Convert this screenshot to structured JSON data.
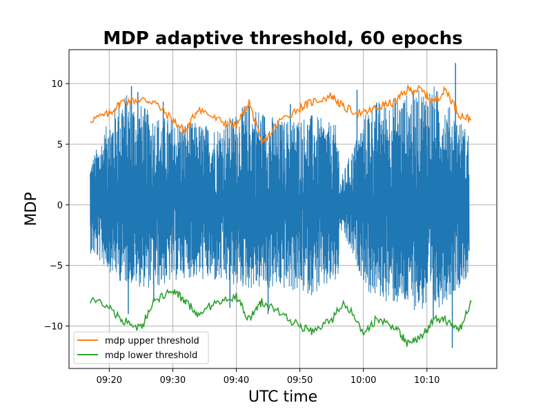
{
  "chart_data": {
    "type": "line",
    "title": "MDP adaptive threshold, 60 epochs",
    "xlabel": "UTC time",
    "ylabel": "MDP",
    "xlim": [
      "09:13:40",
      "10:21:00"
    ],
    "ylim": [
      -13.5,
      12.8
    ],
    "x_ticks": [
      "09:20",
      "09:30",
      "09:40",
      "09:50",
      "10:00",
      "10:10"
    ],
    "y_ticks": [
      {
        "value": 10,
        "label": "10"
      },
      {
        "value": 5,
        "label": "5"
      },
      {
        "value": 0,
        "label": "0"
      },
      {
        "value": -5,
        "label": "−5"
      },
      {
        "value": -10,
        "label": "−10"
      }
    ],
    "grid": true,
    "legend_position": "lower-left",
    "series": [
      {
        "name": "",
        "color": "#1f77b4",
        "x": [
          "09:17",
          "09:22",
          "09:27",
          "09:32",
          "09:37",
          "09:42",
          "09:47",
          "09:52",
          "09:56",
          "09:56:20",
          "10:01",
          "10:06",
          "10:11",
          "10:16:40"
        ],
        "upper_envelope": [
          3.5,
          9.5,
          7.5,
          7.0,
          6.5,
          8.5,
          7.0,
          7.5,
          6.5,
          2.0,
          8.5,
          9.0,
          10.0,
          6.0
        ],
        "lower_envelope": [
          -4.0,
          -6.5,
          -7.0,
          -6.0,
          -6.5,
          -7.0,
          -7.0,
          -7.5,
          -6.5,
          -2.0,
          -7.5,
          -8.5,
          -9.0,
          -6.0
        ],
        "peaks": [
          {
            "x": "09:19:50",
            "y": 5.5
          },
          {
            "x": "09:23:30",
            "y": 9.8
          },
          {
            "x": "09:24:30",
            "y": 9.3
          },
          {
            "x": "09:28:30",
            "y": 8.5
          },
          {
            "x": "09:48:30",
            "y": 8.3
          },
          {
            "x": "09:59:00",
            "y": 9.5
          },
          {
            "x": "10:08:30",
            "y": 8.5
          },
          {
            "x": "10:14:30",
            "y": 11.7
          },
          {
            "x": "09:23:00",
            "y": -9.0
          },
          {
            "x": "09:27:00",
            "y": -8.0
          },
          {
            "x": "09:39:00",
            "y": -8.5
          },
          {
            "x": "09:45:00",
            "y": -9.0
          },
          {
            "x": "10:11:00",
            "y": -9.5
          },
          {
            "x": "10:14:00",
            "y": -11.8
          }
        ]
      },
      {
        "name": "mdp upper threshold",
        "color": "#ff7f0e",
        "x": [
          "09:17",
          "09:20",
          "09:22",
          "09:25",
          "09:27",
          "09:30",
          "09:32",
          "09:34",
          "09:37",
          "09:40",
          "09:42",
          "09:44",
          "09:47",
          "09:50",
          "09:52",
          "09:55",
          "09:57",
          "10:00",
          "10:02",
          "10:05",
          "10:07",
          "10:09",
          "10:11",
          "10:13",
          "10:15",
          "10:17"
        ],
        "values": [
          7.0,
          7.5,
          8.5,
          8.7,
          8.5,
          7.0,
          6.0,
          8.0,
          7.0,
          6.5,
          8.5,
          5.0,
          7.0,
          8.0,
          8.5,
          9.0,
          8.0,
          7.5,
          8.0,
          8.5,
          9.5,
          9.5,
          8.5,
          9.5,
          7.5,
          7.0
        ]
      },
      {
        "name": "mdp lower threshold",
        "color": "#2ca02c",
        "x": [
          "09:17",
          "09:20",
          "09:22",
          "09:25",
          "09:27",
          "09:30",
          "09:32",
          "09:34",
          "09:37",
          "09:40",
          "09:42",
          "09:44",
          "09:47",
          "09:50",
          "09:52",
          "09:55",
          "09:57",
          "10:00",
          "10:02",
          "10:05",
          "10:07",
          "10:09",
          "10:11",
          "10:13",
          "10:15",
          "10:17"
        ],
        "values": [
          -7.8,
          -8.5,
          -9.5,
          -10.2,
          -8.0,
          -7.0,
          -8.0,
          -9.0,
          -8.0,
          -7.5,
          -9.5,
          -8.0,
          -9.0,
          -10.0,
          -10.5,
          -9.5,
          -8.0,
          -10.5,
          -9.5,
          -10.0,
          -11.5,
          -11.0,
          -9.5,
          -9.5,
          -10.5,
          -8.0
        ]
      }
    ]
  }
}
